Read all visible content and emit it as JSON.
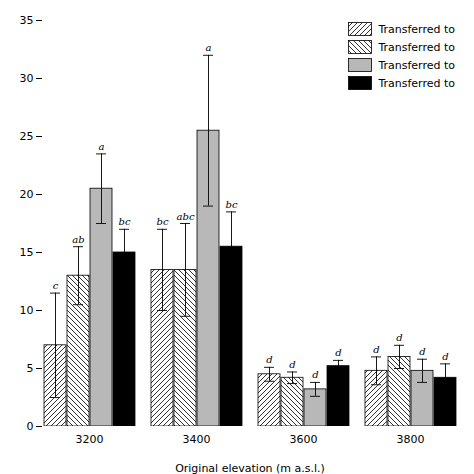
{
  "chart_data": {
    "type": "bar",
    "xlabel": "Original elevation (m a.s.l.)",
    "categories": [
      "3200",
      "3400",
      "3600",
      "3800"
    ],
    "series": [
      {
        "name": "Transferred to",
        "color": "white",
        "values": [
          7.0,
          13.5,
          4.5,
          4.8
        ],
        "errors": [
          4.5,
          3.5,
          0.6,
          1.2
        ],
        "significance_labels": [
          "c",
          "bc",
          "d",
          "d"
        ]
      },
      {
        "name": "Transferred to",
        "color": "white",
        "values": [
          13.0,
          13.5,
          4.2,
          6.0
        ],
        "errors": [
          2.5,
          4.0,
          0.5,
          1.0
        ],
        "significance_labels": [
          "ab",
          "abc",
          "d",
          "d"
        ]
      },
      {
        "name": "Transferred to",
        "color": "#b8b8b8",
        "values": [
          20.5,
          25.5,
          3.2,
          4.8
        ],
        "errors": [
          3.0,
          6.5,
          0.6,
          1.0
        ],
        "significance_labels": [
          "a",
          "a",
          "d",
          "d"
        ]
      },
      {
        "name": "Transferred to",
        "color": "black",
        "values": [
          15.0,
          15.5,
          5.2,
          4.2
        ],
        "errors": [
          2.0,
          3.0,
          0.5,
          1.2
        ],
        "significance_labels": [
          "bc",
          "bc",
          "d",
          "d"
        ]
      }
    ],
    "ylim": [
      0,
      35
    ],
    "yticks": [
      0,
      5,
      10,
      15,
      20,
      25,
      30,
      35
    ],
    "grid": false,
    "legend": "upper right"
  }
}
